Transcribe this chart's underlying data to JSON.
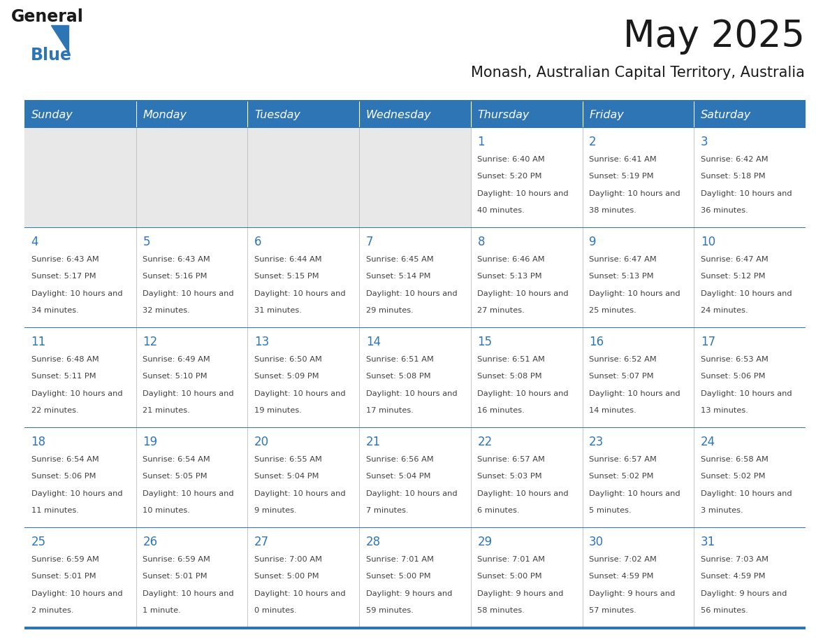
{
  "title": "May 2025",
  "subtitle": "Monash, Australian Capital Territory, Australia",
  "days_of_week": [
    "Sunday",
    "Monday",
    "Tuesday",
    "Wednesday",
    "Thursday",
    "Friday",
    "Saturday"
  ],
  "header_bg": "#2E75B6",
  "header_text": "#FFFFFF",
  "empty_cell_bg": "#E8E8E8",
  "cell_bg": "#FFFFFF",
  "day_number_color": "#2E75B6",
  "text_color": "#404040",
  "grid_line_color": "#BBBBBB",
  "row_separator_color": "#2E75B6",
  "calendar_data": [
    [
      null,
      null,
      null,
      null,
      {
        "day": 1,
        "sunrise": "6:40 AM",
        "sunset": "5:20 PM",
        "daylight": "10 hours and 40 minutes."
      },
      {
        "day": 2,
        "sunrise": "6:41 AM",
        "sunset": "5:19 PM",
        "daylight": "10 hours and 38 minutes."
      },
      {
        "day": 3,
        "sunrise": "6:42 AM",
        "sunset": "5:18 PM",
        "daylight": "10 hours and 36 minutes."
      }
    ],
    [
      {
        "day": 4,
        "sunrise": "6:43 AM",
        "sunset": "5:17 PM",
        "daylight": "10 hours and 34 minutes."
      },
      {
        "day": 5,
        "sunrise": "6:43 AM",
        "sunset": "5:16 PM",
        "daylight": "10 hours and 32 minutes."
      },
      {
        "day": 6,
        "sunrise": "6:44 AM",
        "sunset": "5:15 PM",
        "daylight": "10 hours and 31 minutes."
      },
      {
        "day": 7,
        "sunrise": "6:45 AM",
        "sunset": "5:14 PM",
        "daylight": "10 hours and 29 minutes."
      },
      {
        "day": 8,
        "sunrise": "6:46 AM",
        "sunset": "5:13 PM",
        "daylight": "10 hours and 27 minutes."
      },
      {
        "day": 9,
        "sunrise": "6:47 AM",
        "sunset": "5:13 PM",
        "daylight": "10 hours and 25 minutes."
      },
      {
        "day": 10,
        "sunrise": "6:47 AM",
        "sunset": "5:12 PM",
        "daylight": "10 hours and 24 minutes."
      }
    ],
    [
      {
        "day": 11,
        "sunrise": "6:48 AM",
        "sunset": "5:11 PM",
        "daylight": "10 hours and 22 minutes."
      },
      {
        "day": 12,
        "sunrise": "6:49 AM",
        "sunset": "5:10 PM",
        "daylight": "10 hours and 21 minutes."
      },
      {
        "day": 13,
        "sunrise": "6:50 AM",
        "sunset": "5:09 PM",
        "daylight": "10 hours and 19 minutes."
      },
      {
        "day": 14,
        "sunrise": "6:51 AM",
        "sunset": "5:08 PM",
        "daylight": "10 hours and 17 minutes."
      },
      {
        "day": 15,
        "sunrise": "6:51 AM",
        "sunset": "5:08 PM",
        "daylight": "10 hours and 16 minutes."
      },
      {
        "day": 16,
        "sunrise": "6:52 AM",
        "sunset": "5:07 PM",
        "daylight": "10 hours and 14 minutes."
      },
      {
        "day": 17,
        "sunrise": "6:53 AM",
        "sunset": "5:06 PM",
        "daylight": "10 hours and 13 minutes."
      }
    ],
    [
      {
        "day": 18,
        "sunrise": "6:54 AM",
        "sunset": "5:06 PM",
        "daylight": "10 hours and 11 minutes."
      },
      {
        "day": 19,
        "sunrise": "6:54 AM",
        "sunset": "5:05 PM",
        "daylight": "10 hours and 10 minutes."
      },
      {
        "day": 20,
        "sunrise": "6:55 AM",
        "sunset": "5:04 PM",
        "daylight": "10 hours and 9 minutes."
      },
      {
        "day": 21,
        "sunrise": "6:56 AM",
        "sunset": "5:04 PM",
        "daylight": "10 hours and 7 minutes."
      },
      {
        "day": 22,
        "sunrise": "6:57 AM",
        "sunset": "5:03 PM",
        "daylight": "10 hours and 6 minutes."
      },
      {
        "day": 23,
        "sunrise": "6:57 AM",
        "sunset": "5:02 PM",
        "daylight": "10 hours and 5 minutes."
      },
      {
        "day": 24,
        "sunrise": "6:58 AM",
        "sunset": "5:02 PM",
        "daylight": "10 hours and 3 minutes."
      }
    ],
    [
      {
        "day": 25,
        "sunrise": "6:59 AM",
        "sunset": "5:01 PM",
        "daylight": "10 hours and 2 minutes."
      },
      {
        "day": 26,
        "sunrise": "6:59 AM",
        "sunset": "5:01 PM",
        "daylight": "10 hours and 1 minute."
      },
      {
        "day": 27,
        "sunrise": "7:00 AM",
        "sunset": "5:00 PM",
        "daylight": "10 hours and 0 minutes."
      },
      {
        "day": 28,
        "sunrise": "7:01 AM",
        "sunset": "5:00 PM",
        "daylight": "9 hours and 59 minutes."
      },
      {
        "day": 29,
        "sunrise": "7:01 AM",
        "sunset": "5:00 PM",
        "daylight": "9 hours and 58 minutes."
      },
      {
        "day": 30,
        "sunrise": "7:02 AM",
        "sunset": "4:59 PM",
        "daylight": "9 hours and 57 minutes."
      },
      {
        "day": 31,
        "sunrise": "7:03 AM",
        "sunset": "4:59 PM",
        "daylight": "9 hours and 56 minutes."
      }
    ]
  ]
}
